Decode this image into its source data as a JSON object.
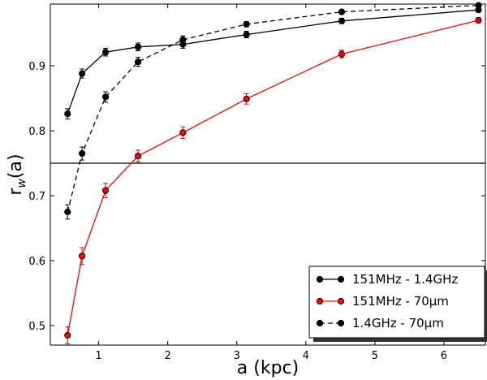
{
  "chart_data": {
    "type": "line",
    "title": "",
    "xlabel": "a (kpc)",
    "ylabel": "r_w(a)",
    "ylabel_main": "r",
    "ylabel_sub": "w",
    "ylabel_tail": "(a)",
    "xlim": [
      0.3,
      6.6
    ],
    "ylim": [
      0.47,
      0.995
    ],
    "xticks": [
      1,
      2,
      3,
      4,
      5,
      6
    ],
    "xtick_labels": [
      "1",
      "2",
      "3",
      "4",
      "5",
      "6"
    ],
    "yticks": [
      0.5,
      0.6,
      0.7,
      0.8,
      0.9
    ],
    "ytick_labels": [
      "0.5",
      "0.6",
      "0.7",
      "0.8",
      "0.9"
    ],
    "hline": 0.75,
    "legend_position": "bottom-right",
    "grid": false,
    "series": [
      {
        "name": "151MHz - 1.4GHz",
        "color": "#000000",
        "linestyle": "solid",
        "x": [
          0.55,
          0.76,
          1.1,
          1.57,
          2.22,
          3.14,
          4.52,
          6.5
        ],
        "y": [
          0.826,
          0.888,
          0.921,
          0.929,
          0.933,
          0.948,
          0.969,
          0.986
        ],
        "err": [
          0.008,
          0.007,
          0.006,
          0.006,
          0.006,
          0.005,
          0.004,
          0.003
        ]
      },
      {
        "name": "151MHz - 70μm",
        "color": "#ff0000",
        "linestyle": "solid",
        "x": [
          0.55,
          0.76,
          1.1,
          1.57,
          2.22,
          3.14,
          4.52,
          6.5
        ],
        "y": [
          0.485,
          0.607,
          0.708,
          0.761,
          0.797,
          0.849,
          0.918,
          0.97
        ],
        "err": [
          0.013,
          0.013,
          0.011,
          0.009,
          0.009,
          0.008,
          0.006,
          0.004
        ]
      },
      {
        "name": "1.4GHz - 70μm",
        "color": "#000000",
        "linestyle": "dashed",
        "x": [
          0.55,
          0.76,
          1.1,
          1.57,
          2.22,
          3.14,
          4.52,
          6.5
        ],
        "y": [
          0.675,
          0.765,
          0.852,
          0.906,
          0.94,
          0.964,
          0.983,
          0.993
        ],
        "err": [
          0.011,
          0.01,
          0.008,
          0.007,
          0.006,
          0.004,
          0.003,
          0.002
        ]
      }
    ]
  }
}
